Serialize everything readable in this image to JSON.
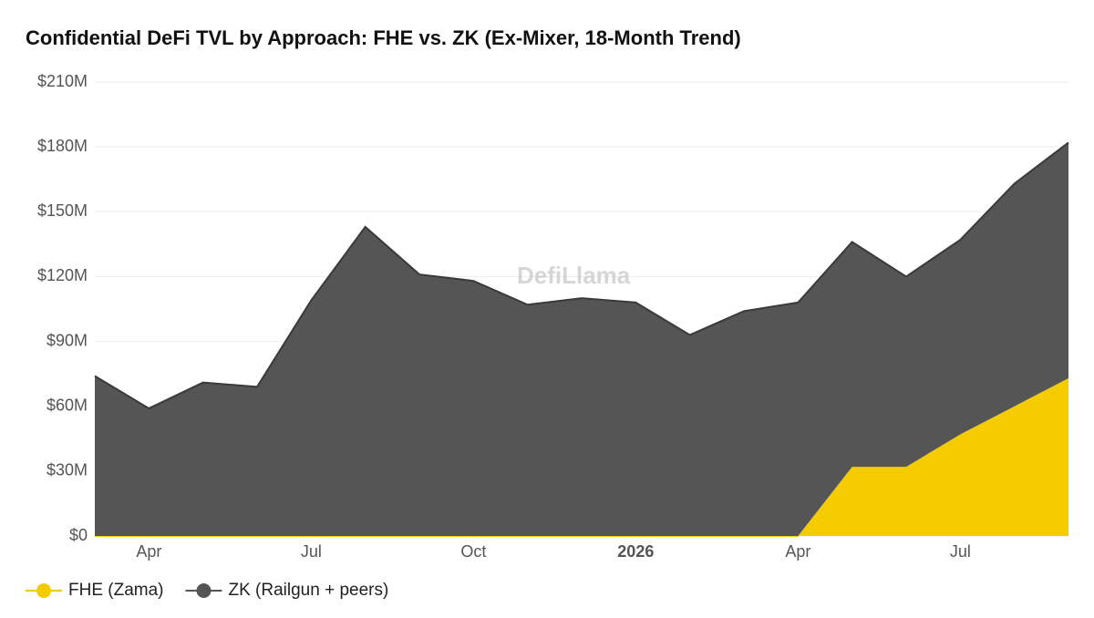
{
  "chart_data": {
    "type": "stacked-area",
    "title": "Confidential DeFi TVL by Approach: FHE vs. ZK (Ex-Mixer, 18-Month Trend)",
    "watermark": "DefiLlama",
    "categories": [
      null,
      "Apr",
      null,
      null,
      "Jul",
      null,
      null,
      "Oct",
      null,
      null,
      "2026",
      null,
      null,
      "Apr",
      null,
      null,
      "Jul",
      null,
      null
    ],
    "series": [
      {
        "name": "FHE (Zama)",
        "color": "#f5cc00",
        "values": [
          0,
          0,
          0,
          0,
          0,
          0,
          0,
          0,
          0,
          0,
          0,
          0,
          0,
          0,
          32,
          32,
          47,
          60,
          73
        ]
      },
      {
        "name": "ZK (Railgun + peers)",
        "color": "#555555",
        "values": [
          74,
          59,
          71,
          69,
          109,
          143,
          121,
          118,
          107,
          110,
          108,
          93,
          104,
          108,
          104,
          88,
          90,
          103,
          109
        ]
      }
    ],
    "ylim": [
      0,
      210
    ],
    "yticks": [
      {
        "value": 0,
        "label": "$0"
      },
      {
        "value": 30,
        "label": "$30M"
      },
      {
        "value": 60,
        "label": "$60M"
      },
      {
        "value": 90,
        "label": "$90M"
      },
      {
        "value": 120,
        "label": "$120M"
      },
      {
        "value": 150,
        "label": "$150M"
      },
      {
        "value": 180,
        "label": "$180M"
      },
      {
        "value": 210,
        "label": "$210M"
      }
    ],
    "grid": true
  }
}
